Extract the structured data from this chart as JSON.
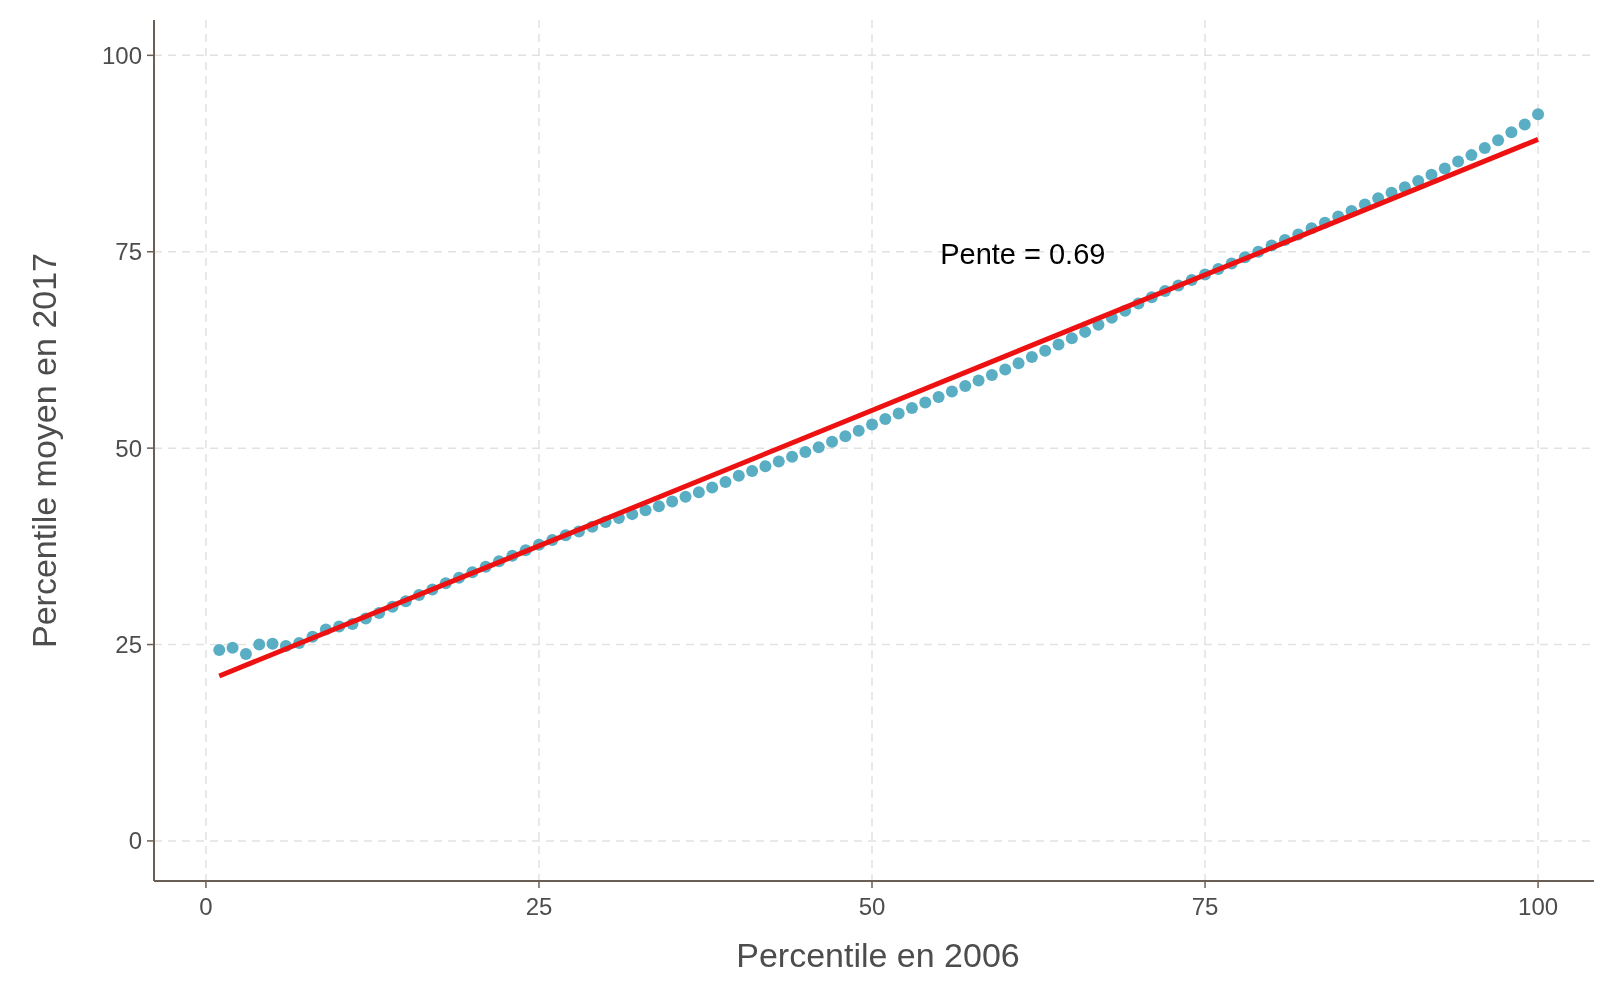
{
  "chart_data": {
    "type": "scatter",
    "xlabel": "Percentile en 2006",
    "ylabel": "Percentile moyen en 2017",
    "xlim": [
      -3.9,
      104.8
    ],
    "ylim": [
      -5.1,
      104.5
    ],
    "xticks": [
      0,
      25,
      50,
      75,
      100
    ],
    "yticks": [
      0,
      25,
      50,
      75,
      100
    ],
    "grid": true,
    "annotations": [
      "Pente = 0.69"
    ],
    "series": [
      {
        "marker": "circle",
        "color": "#5aaec4",
        "x": [
          1,
          2,
          3,
          4,
          5,
          6,
          7,
          8,
          9,
          10,
          11,
          12,
          13,
          14,
          15,
          16,
          17,
          18,
          19,
          20,
          21,
          22,
          23,
          24,
          25,
          26,
          27,
          28,
          29,
          30,
          31,
          32,
          33,
          34,
          35,
          36,
          37,
          38,
          39,
          40,
          41,
          42,
          43,
          44,
          45,
          46,
          47,
          48,
          49,
          50,
          51,
          52,
          53,
          54,
          55,
          56,
          57,
          58,
          59,
          60,
          61,
          62,
          63,
          64,
          65,
          66,
          67,
          68,
          69,
          70,
          71,
          72,
          73,
          74,
          75,
          76,
          77,
          78,
          79,
          80,
          81,
          82,
          83,
          84,
          85,
          86,
          87,
          88,
          89,
          90,
          91,
          92,
          93,
          94,
          95,
          96,
          97,
          98,
          99,
          100
        ],
        "values": [
          24.3,
          24.6,
          23.8,
          25.0,
          25.1,
          24.8,
          25.2,
          26.0,
          26.9,
          27.3,
          27.6,
          28.3,
          29.0,
          29.8,
          30.5,
          31.3,
          32.0,
          32.8,
          33.5,
          34.2,
          34.9,
          35.6,
          36.3,
          37.0,
          37.7,
          38.3,
          38.9,
          39.4,
          40.0,
          40.6,
          41.1,
          41.6,
          42.1,
          42.6,
          43.2,
          43.8,
          44.4,
          45.0,
          45.7,
          46.5,
          47.1,
          47.7,
          48.3,
          48.9,
          49.5,
          50.1,
          50.8,
          51.5,
          52.2,
          53.0,
          53.7,
          54.4,
          55.1,
          55.8,
          56.5,
          57.2,
          57.9,
          58.6,
          59.3,
          60.0,
          60.8,
          61.6,
          62.4,
          63.2,
          64.0,
          64.8,
          65.7,
          66.6,
          67.5,
          68.4,
          69.2,
          70.0,
          70.7,
          71.4,
          72.1,
          72.8,
          73.5,
          74.3,
          75.0,
          75.8,
          76.5,
          77.2,
          78.0,
          78.7,
          79.5,
          80.2,
          81.0,
          81.8,
          82.5,
          83.2,
          84.0,
          84.8,
          85.6,
          86.5,
          87.3,
          88.2,
          89.2,
          90.2,
          91.2,
          92.5
        ]
      },
      {
        "type": "line",
        "color": "#ee1111",
        "x": [
          1,
          100
        ],
        "values": [
          21.0,
          89.3
        ]
      }
    ]
  }
}
